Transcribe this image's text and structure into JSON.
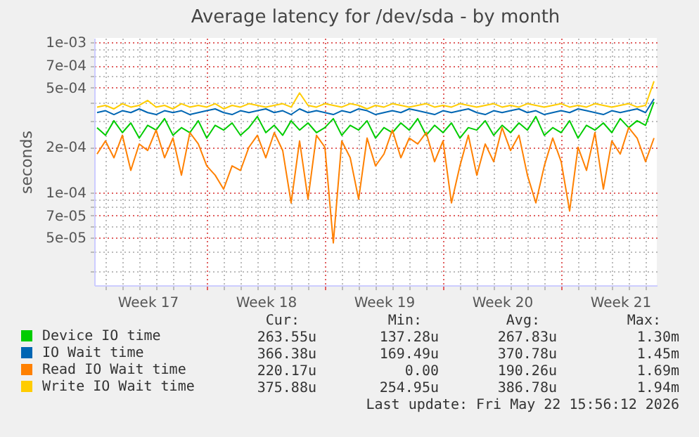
{
  "chart_data": {
    "type": "line",
    "title": "Average latency for /dev/sda - by month",
    "ylabel": "seconds",
    "log": true,
    "grid": true,
    "legend": "bottom",
    "xlim": [
      "2026-04-20T08:00",
      "2026-05-23T16:00"
    ],
    "xticks": [
      {
        "value": "2026-04-21",
        "label": null
      },
      {
        "value": "2026-04-22",
        "label": null
      },
      {
        "value": "2026-04-23",
        "label": null
      },
      {
        "value": "2026-04-23T12:00",
        "label": "Week 17"
      },
      {
        "value": "2026-04-24",
        "label": null
      },
      {
        "value": "2026-04-25",
        "label": null
      },
      {
        "value": "2026-04-26",
        "label": null
      },
      {
        "value": "2026-04-27",
        "label": null
      },
      {
        "value": "2026-04-28",
        "label": null
      },
      {
        "value": "2026-04-29",
        "label": null
      },
      {
        "value": "2026-04-30",
        "label": null
      },
      {
        "value": "2026-04-30T12:00",
        "label": "Week 18"
      },
      {
        "value": "2026-05-01",
        "label": null
      },
      {
        "value": "2026-05-02",
        "label": null
      },
      {
        "value": "2026-05-03",
        "label": null
      },
      {
        "value": "2026-05-04",
        "label": null
      },
      {
        "value": "2026-05-05",
        "label": null
      },
      {
        "value": "2026-05-06",
        "label": null
      },
      {
        "value": "2026-05-07",
        "label": null
      },
      {
        "value": "2026-05-07T12:00",
        "label": "Week 19"
      },
      {
        "value": "2026-05-08",
        "label": null
      },
      {
        "value": "2026-05-09",
        "label": null
      },
      {
        "value": "2026-05-10",
        "label": null
      },
      {
        "value": "2026-05-11",
        "label": null
      },
      {
        "value": "2026-05-12",
        "label": null
      },
      {
        "value": "2026-05-13",
        "label": null
      },
      {
        "value": "2026-05-14",
        "label": null
      },
      {
        "value": "2026-05-14T12:00",
        "label": "Week 20"
      },
      {
        "value": "2026-05-15",
        "label": null
      },
      {
        "value": "2026-05-16",
        "label": null
      },
      {
        "value": "2026-05-17",
        "label": null
      },
      {
        "value": "2026-05-18",
        "label": null
      },
      {
        "value": "2026-05-19",
        "label": null
      },
      {
        "value": "2026-05-20",
        "label": null
      },
      {
        "value": "2026-05-21",
        "label": null
      },
      {
        "value": "2026-05-21T12:00",
        "label": "Week 21"
      },
      {
        "value": "2026-05-22",
        "label": null
      },
      {
        "value": "2026-05-23",
        "label": null
      }
    ],
    "ylim": [
      2.4e-05,
      0.00107
    ],
    "yticks": [
      {
        "value": 3e-05,
        "label": null
      },
      {
        "value": 4e-05,
        "label": null
      },
      {
        "value": 5e-05,
        "label": "5e-05"
      },
      {
        "value": 6e-05,
        "label": null
      },
      {
        "value": 7e-05,
        "label": "7e-05"
      },
      {
        "value": 8e-05,
        "label": null
      },
      {
        "value": 9e-05,
        "label": null
      },
      {
        "value": 0.0001,
        "label": "1e-04"
      },
      {
        "value": 0.0002,
        "label": "2e-04"
      },
      {
        "value": 0.0003,
        "label": null
      },
      {
        "value": 0.0004,
        "label": null
      },
      {
        "value": 0.0005,
        "label": "5e-04"
      },
      {
        "value": 0.0006,
        "label": null
      },
      {
        "value": 0.0007,
        "label": "7e-04"
      },
      {
        "value": 0.0008,
        "label": null
      },
      {
        "value": 0.0009,
        "label": null
      },
      {
        "value": 0.001,
        "label": "1e-03"
      }
    ],
    "x": [
      "2026-04-20T12:00",
      "2026-04-21T00:00",
      "2026-04-21T12:00",
      "2026-04-22T00:00",
      "2026-04-22T12:00",
      "2026-04-23T00:00",
      "2026-04-23T12:00",
      "2026-04-24T00:00",
      "2026-04-24T12:00",
      "2026-04-25T00:00",
      "2026-04-25T12:00",
      "2026-04-26T00:00",
      "2026-04-26T12:00",
      "2026-04-27T00:00",
      "2026-04-27T12:00",
      "2026-04-28T00:00",
      "2026-04-28T12:00",
      "2026-04-29T00:00",
      "2026-04-29T12:00",
      "2026-04-30T00:00",
      "2026-04-30T12:00",
      "2026-05-01T00:00",
      "2026-05-01T12:00",
      "2026-05-02T00:00",
      "2026-05-02T12:00",
      "2026-05-03T00:00",
      "2026-05-03T12:00",
      "2026-05-04T00:00",
      "2026-05-04T12:00",
      "2026-05-05T00:00",
      "2026-05-05T12:00",
      "2026-05-06T00:00",
      "2026-05-06T12:00",
      "2026-05-07T00:00",
      "2026-05-07T12:00",
      "2026-05-08T00:00",
      "2026-05-08T12:00",
      "2026-05-09T00:00",
      "2026-05-09T12:00",
      "2026-05-10T00:00",
      "2026-05-10T12:00",
      "2026-05-11T00:00",
      "2026-05-11T12:00",
      "2026-05-12T00:00",
      "2026-05-12T12:00",
      "2026-05-13T00:00",
      "2026-05-13T12:00",
      "2026-05-14T00:00",
      "2026-05-14T12:00",
      "2026-05-15T00:00",
      "2026-05-15T12:00",
      "2026-05-16T00:00",
      "2026-05-16T12:00",
      "2026-05-17T00:00",
      "2026-05-17T12:00",
      "2026-05-18T00:00",
      "2026-05-18T12:00",
      "2026-05-19T00:00",
      "2026-05-19T12:00",
      "2026-05-20T00:00",
      "2026-05-20T12:00",
      "2026-05-21T00:00",
      "2026-05-21T12:00",
      "2026-05-22T00:00",
      "2026-05-22T12:00",
      "2026-05-23T00:00",
      "2026-05-23T12:00"
    ],
    "series": [
      {
        "name": "Device IO time",
        "color": "#00cc00",
        "values": [
          0.00027,
          0.00024,
          0.0003,
          0.00025,
          0.00029,
          0.00023,
          0.00028,
          0.00026,
          0.00031,
          0.00024,
          0.00027,
          0.00025,
          0.0003,
          0.00023,
          0.00028,
          0.00026,
          0.00029,
          0.00024,
          0.00027,
          0.00032,
          0.00025,
          0.00028,
          0.00024,
          0.0003,
          0.00026,
          0.00029,
          0.00025,
          0.00027,
          0.00031,
          0.00024,
          0.00028,
          0.00026,
          0.0003,
          0.00023,
          0.00027,
          0.00025,
          0.00029,
          0.00026,
          0.00031,
          0.00024,
          0.00028,
          0.00025,
          0.00029,
          0.00023,
          0.00027,
          0.00026,
          0.0003,
          0.00024,
          0.00028,
          0.00025,
          0.00029,
          0.00026,
          0.00032,
          0.00024,
          0.00027,
          0.00025,
          0.0003,
          0.00023,
          0.00028,
          0.00026,
          0.00029,
          0.00025,
          0.00031,
          0.00027,
          0.0003,
          0.00028,
          0.0004
        ]
      },
      {
        "name": "IO Wait time",
        "color": "#0066b3",
        "values": [
          0.00034,
          0.00035,
          0.00033,
          0.00035,
          0.00034,
          0.00036,
          0.00034,
          0.00033,
          0.00035,
          0.00034,
          0.00035,
          0.00033,
          0.00034,
          0.00035,
          0.00036,
          0.00034,
          0.00033,
          0.00035,
          0.00034,
          0.00035,
          0.00036,
          0.00034,
          0.00035,
          0.00033,
          0.00036,
          0.00034,
          0.00035,
          0.00034,
          0.00033,
          0.00035,
          0.00034,
          0.00036,
          0.00035,
          0.00033,
          0.00034,
          0.00035,
          0.00034,
          0.00036,
          0.00035,
          0.00034,
          0.00033,
          0.00035,
          0.00034,
          0.00035,
          0.00036,
          0.00034,
          0.00033,
          0.00035,
          0.00034,
          0.00035,
          0.00036,
          0.00034,
          0.00035,
          0.00033,
          0.00034,
          0.00035,
          0.00034,
          0.00036,
          0.00035,
          0.00034,
          0.00033,
          0.00035,
          0.00034,
          0.00035,
          0.00036,
          0.00034,
          0.00042
        ]
      },
      {
        "name": "Read IO Wait time",
        "color": "#ff8000",
        "values": [
          0.00018,
          0.00022,
          0.00017,
          0.00024,
          0.00014,
          0.00021,
          0.00019,
          0.00026,
          0.00017,
          0.00023,
          0.00013,
          0.00025,
          0.00021,
          0.00015,
          0.00013,
          0.000105,
          0.00015,
          0.00014,
          0.0002,
          0.00024,
          0.00017,
          0.00025,
          0.00019,
          8.5e-05,
          0.00022,
          9e-05,
          0.00024,
          0.0002,
          4.6e-05,
          0.00022,
          0.00017,
          9e-05,
          0.00023,
          0.00015,
          0.00018,
          0.00026,
          0.00017,
          0.00023,
          0.00021,
          0.00025,
          0.00016,
          0.00022,
          8.5e-05,
          0.00015,
          0.00024,
          0.00013,
          0.00021,
          0.00016,
          0.00027,
          0.00019,
          0.00024,
          0.00013,
          8.5e-05,
          0.00015,
          0.00023,
          0.00016,
          7.5e-05,
          0.0002,
          0.00014,
          0.00025,
          0.000105,
          0.00022,
          0.00018,
          0.00027,
          0.00023,
          0.00016,
          0.00023
        ]
      },
      {
        "name": "Write IO Wait time",
        "color": "#ffcc00",
        "values": [
          0.00037,
          0.00038,
          0.00036,
          0.00039,
          0.00037,
          0.00038,
          0.00041,
          0.00037,
          0.00038,
          0.00036,
          0.00039,
          0.00037,
          0.00038,
          0.00037,
          0.00039,
          0.00036,
          0.00038,
          0.00037,
          0.00039,
          0.00038,
          0.00037,
          0.00038,
          0.00039,
          0.00037,
          0.00046,
          0.00038,
          0.00037,
          0.00039,
          0.00038,
          0.00037,
          0.00039,
          0.00038,
          0.00036,
          0.00038,
          0.00037,
          0.00039,
          0.00038,
          0.00037,
          0.00038,
          0.00039,
          0.00037,
          0.00038,
          0.00037,
          0.00039,
          0.00038,
          0.00037,
          0.00038,
          0.00039,
          0.00037,
          0.00038,
          0.00037,
          0.00039,
          0.00038,
          0.00037,
          0.00038,
          0.00039,
          0.00037,
          0.00038,
          0.00037,
          0.00039,
          0.00038,
          0.00037,
          0.00038,
          0.00039,
          0.00037,
          0.00038,
          0.00055
        ]
      }
    ],
    "annotations": [
      "Cur:",
      "Min:",
      "Avg:",
      "Max:",
      "263.55u",
      "137.28u",
      "267.83u",
      "1.30m",
      "366.38u",
      "169.49u",
      "370.78u",
      "1.45m",
      "220.17u",
      "0.00",
      "190.26u",
      "1.69m",
      "375.88u",
      "254.95u",
      "386.78u",
      "1.94m",
      "Last update: Fri May 22 15:56:12 2026"
    ]
  }
}
